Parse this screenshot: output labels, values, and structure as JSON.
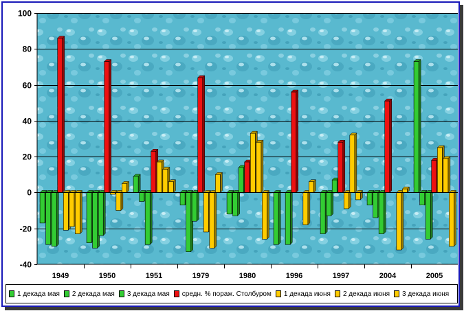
{
  "chart_data": {
    "type": "bar",
    "categories": [
      "1949",
      "1950",
      "1951",
      "1979",
      "1980",
      "1996",
      "1997",
      "2004",
      "2005"
    ],
    "ylim": [
      -40,
      100
    ],
    "yticks": [
      -40,
      -20,
      0,
      20,
      40,
      60,
      80,
      100
    ],
    "grid": true,
    "legend_position": "bottom",
    "background": "water-drops texture",
    "series": [
      {
        "name": "1 декада мая",
        "color": "#33cc33",
        "values": [
          -17,
          -28,
          9,
          -7,
          -12,
          -29,
          -23,
          -7,
          73
        ]
      },
      {
        "name": "2 декада мая",
        "color": "#33cc33",
        "values": [
          -29,
          -31,
          -5,
          -33,
          -13,
          0,
          -13,
          -14,
          -7
        ]
      },
      {
        "name": "3 декада мая",
        "color": "#33cc33",
        "values": [
          -30,
          -24,
          -29,
          -16,
          14,
          -29,
          7,
          -23,
          -26
        ]
      },
      {
        "name": "средн. % пораж. Столбуром",
        "color": "#ee1111",
        "values": [
          86,
          73,
          23,
          64,
          17,
          56,
          28,
          51,
          18
        ]
      },
      {
        "name": "1 декада июня",
        "color": "#ffcc00",
        "values": [
          -21,
          -1,
          17,
          -22,
          33,
          0,
          -9,
          0,
          25
        ]
      },
      {
        "name": "2 декада июня",
        "color": "#ffcc00",
        "values": [
          -19,
          -10,
          13,
          -31,
          28,
          -18,
          32,
          -32,
          19
        ]
      },
      {
        "name": "3 декада июня",
        "color": "#ffcc00",
        "values": [
          -23,
          5,
          6,
          10,
          -26,
          6,
          -4,
          2,
          -30
        ]
      }
    ]
  }
}
